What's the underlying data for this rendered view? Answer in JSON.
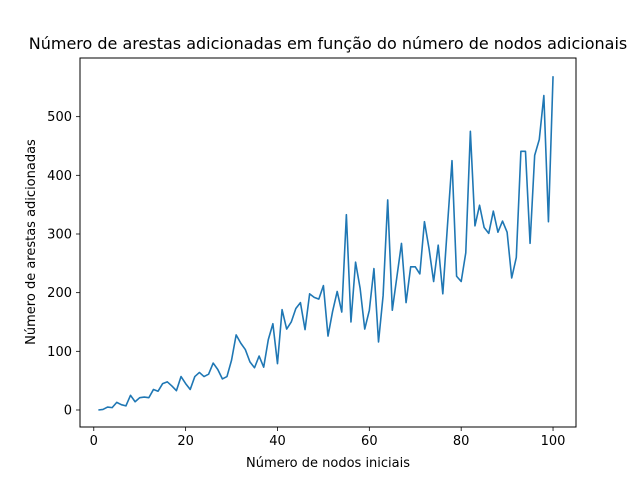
{
  "chart_data": {
    "type": "line",
    "title": "Número de arestas adicionadas em função do número de nodos adicionais",
    "xlabel": "Número de nodos iniciais",
    "ylabel": "Número de arestas adicionadas",
    "xlim": [
      -3,
      105
    ],
    "ylim": [
      -29,
      600
    ],
    "xticks": [
      0,
      20,
      40,
      60,
      80,
      100
    ],
    "yticks": [
      0,
      100,
      200,
      300,
      400,
      500
    ],
    "grid": false,
    "line_color": "#1f77b4",
    "x": [
      1,
      2,
      3,
      4,
      5,
      6,
      7,
      8,
      9,
      10,
      11,
      12,
      13,
      14,
      15,
      16,
      17,
      18,
      19,
      20,
      21,
      22,
      23,
      24,
      25,
      26,
      27,
      28,
      29,
      30,
      31,
      32,
      33,
      34,
      35,
      36,
      37,
      38,
      39,
      40,
      41,
      42,
      43,
      44,
      45,
      46,
      47,
      48,
      49,
      50,
      51,
      52,
      53,
      54,
      55,
      56,
      57,
      58,
      59,
      60,
      61,
      62,
      63,
      64,
      65,
      66,
      67,
      68,
      69,
      70,
      71,
      72,
      73,
      74,
      75,
      76,
      77,
      78,
      79,
      80,
      81,
      82,
      83,
      84,
      85,
      86,
      87,
      88,
      89,
      90,
      91,
      92,
      93,
      94,
      95,
      96,
      97,
      98,
      99,
      100
    ],
    "y": [
      0,
      1,
      5,
      4,
      13,
      9,
      7,
      25,
      14,
      21,
      22,
      21,
      35,
      32,
      45,
      48,
      41,
      33,
      57,
      45,
      35,
      57,
      64,
      57,
      61,
      80,
      69,
      53,
      57,
      85,
      128,
      114,
      103,
      82,
      72,
      92,
      73,
      120,
      147,
      79,
      171,
      138,
      150,
      173,
      183,
      137,
      198,
      192,
      189,
      212,
      126,
      168,
      202,
      167,
      333,
      150,
      252,
      207,
      138,
      170,
      241,
      116,
      195,
      358,
      170,
      227,
      284,
      183,
      244,
      244,
      232,
      321,
      275,
      219,
      281,
      198,
      313,
      425,
      228,
      219,
      268,
      475,
      314,
      349,
      311,
      301,
      339,
      303,
      322,
      303,
      225,
      260,
      441,
      441,
      284,
      434,
      461,
      536,
      321,
      569
    ]
  }
}
